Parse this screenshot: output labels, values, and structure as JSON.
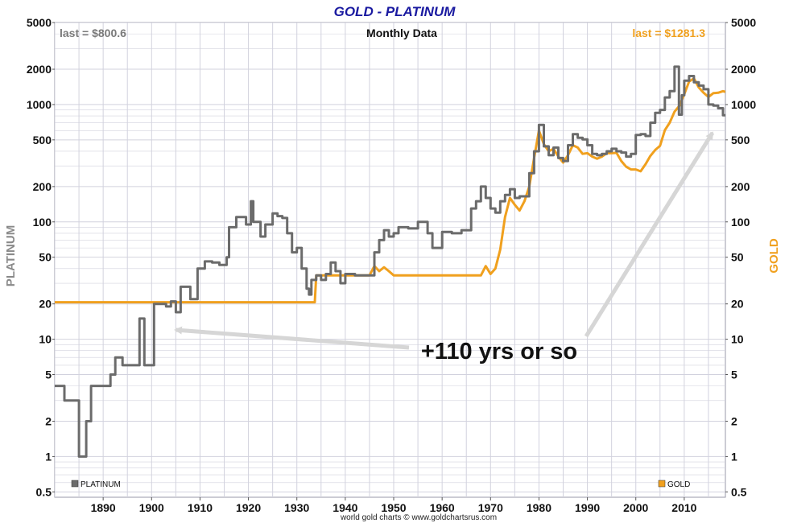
{
  "chart_data": {
    "type": "line",
    "title": "GOLD - PLATINUM",
    "subtitle": "Monthly Data",
    "source": "world gold charts © www.goldchartsrus.com",
    "ylabel_left": "PLATINUM",
    "ylabel_right": "GOLD",
    "y_scale": "log",
    "ylim": [
      0.45,
      5000
    ],
    "xlim": [
      1880,
      2018.5
    ],
    "y_ticks": [
      0.5,
      1,
      2,
      5,
      10,
      20,
      50,
      100,
      200,
      500,
      1000,
      2000,
      5000
    ],
    "y_tick_labels": [
      "0.5",
      "1",
      "2",
      "5",
      "10",
      "20",
      "50",
      "100",
      "200",
      "500",
      "1000",
      "2000",
      "5000"
    ],
    "x_ticks": [
      1890,
      1900,
      1910,
      1920,
      1930,
      1940,
      1950,
      1960,
      1970,
      1980,
      1990,
      2000,
      2010
    ],
    "x_tick_labels": [
      "1890",
      "1900",
      "1910",
      "1920",
      "1930",
      "1940",
      "1950",
      "1960",
      "1970",
      "1980",
      "1990",
      "2000",
      "2010"
    ],
    "grid": true,
    "legend": [
      {
        "name": "PLATINUM",
        "position": "bottom-left"
      },
      {
        "name": "GOLD",
        "position": "bottom-right"
      }
    ],
    "last_labels": {
      "platinum": "last = $800.6",
      "gold": "last = $1281.3"
    },
    "annotation": "+110 yrs or so",
    "colors": {
      "platinum": "#6b6b6b",
      "gold": "#f0a01e",
      "title": "#1a1aa0",
      "arrow": "#d6d6d6",
      "grid": "#d2d2de"
    },
    "series": [
      {
        "name": "PLATINUM",
        "step": true,
        "points": [
          [
            1880,
            4
          ],
          [
            1882,
            3
          ],
          [
            1885,
            1
          ],
          [
            1886.5,
            2
          ],
          [
            1887.5,
            4
          ],
          [
            1891.5,
            5
          ],
          [
            1892.5,
            7
          ],
          [
            1894,
            6
          ],
          [
            1897.5,
            15
          ],
          [
            1898.5,
            6
          ],
          [
            1900.5,
            20
          ],
          [
            1903,
            19
          ],
          [
            1904,
            21
          ],
          [
            1905,
            17
          ],
          [
            1906,
            28
          ],
          [
            1908,
            22
          ],
          [
            1909.5,
            40
          ],
          [
            1911,
            46
          ],
          [
            1912.5,
            45
          ],
          [
            1914,
            43
          ],
          [
            1915.5,
            50
          ],
          [
            1916,
            90
          ],
          [
            1917.5,
            110
          ],
          [
            1919.5,
            95
          ],
          [
            1920.5,
            150
          ],
          [
            1921,
            100
          ],
          [
            1922.5,
            75
          ],
          [
            1923.5,
            95
          ],
          [
            1925,
            118
          ],
          [
            1926,
            112
          ],
          [
            1927,
            108
          ],
          [
            1928,
            80
          ],
          [
            1929,
            55
          ],
          [
            1930,
            60
          ],
          [
            1931,
            40
          ],
          [
            1932,
            27
          ],
          [
            1932.5,
            24
          ],
          [
            1933,
            32
          ],
          [
            1934,
            35
          ],
          [
            1935,
            32
          ],
          [
            1936,
            36
          ],
          [
            1937,
            45
          ],
          [
            1938,
            38
          ],
          [
            1939,
            30
          ],
          [
            1940,
            36
          ],
          [
            1942,
            35
          ],
          [
            1945,
            35
          ],
          [
            1946,
            55
          ],
          [
            1947,
            70
          ],
          [
            1948,
            85
          ],
          [
            1949,
            75
          ],
          [
            1950,
            80
          ],
          [
            1951,
            90
          ],
          [
            1953,
            88
          ],
          [
            1955,
            100
          ],
          [
            1957,
            80
          ],
          [
            1958,
            60
          ],
          [
            1960,
            82
          ],
          [
            1962,
            80
          ],
          [
            1964,
            85
          ],
          [
            1966,
            130
          ],
          [
            1967,
            150
          ],
          [
            1968,
            200
          ],
          [
            1969,
            160
          ],
          [
            1970,
            130
          ],
          [
            1971,
            120
          ],
          [
            1972,
            150
          ],
          [
            1973,
            170
          ],
          [
            1974,
            190
          ],
          [
            1975,
            160
          ],
          [
            1976,
            165
          ],
          [
            1977,
            165
          ],
          [
            1978,
            260
          ],
          [
            1979,
            400
          ],
          [
            1980,
            670
          ],
          [
            1981,
            440
          ],
          [
            1982,
            370
          ],
          [
            1983,
            430
          ],
          [
            1984,
            350
          ],
          [
            1985,
            330
          ],
          [
            1986,
            450
          ],
          [
            1987,
            560
          ],
          [
            1988,
            520
          ],
          [
            1989,
            505
          ],
          [
            1990,
            450
          ],
          [
            1991,
            380
          ],
          [
            1992,
            370
          ],
          [
            1993,
            380
          ],
          [
            1994,
            400
          ],
          [
            1995,
            420
          ],
          [
            1996,
            400
          ],
          [
            1997,
            390
          ],
          [
            1998,
            360
          ],
          [
            1999,
            380
          ],
          [
            2000,
            550
          ],
          [
            2001,
            560
          ],
          [
            2002,
            540
          ],
          [
            2003,
            700
          ],
          [
            2004,
            850
          ],
          [
            2005,
            900
          ],
          [
            2006,
            1150
          ],
          [
            2007,
            1300
          ],
          [
            2008,
            2100
          ],
          [
            2008.9,
            820
          ],
          [
            2009.5,
            1200
          ],
          [
            2010,
            1600
          ],
          [
            2011,
            1750
          ],
          [
            2012,
            1550
          ],
          [
            2013,
            1450
          ],
          [
            2014,
            1350
          ],
          [
            2015,
            1000
          ],
          [
            2016,
            980
          ],
          [
            2017,
            930
          ],
          [
            2018,
            810
          ],
          [
            2018.5,
            800.6
          ]
        ]
      },
      {
        "name": "GOLD",
        "step": false,
        "points": [
          [
            1880,
            20.67
          ],
          [
            1933.7,
            20.67
          ],
          [
            1934,
            35
          ],
          [
            1945,
            35
          ],
          [
            1946,
            42
          ],
          [
            1947,
            38
          ],
          [
            1948,
            41
          ],
          [
            1949,
            38
          ],
          [
            1950,
            35
          ],
          [
            1968,
            35
          ],
          [
            1969,
            42
          ],
          [
            1970,
            36
          ],
          [
            1971,
            40
          ],
          [
            1972,
            58
          ],
          [
            1973,
            110
          ],
          [
            1974,
            160
          ],
          [
            1975,
            140
          ],
          [
            1976,
            125
          ],
          [
            1977,
            150
          ],
          [
            1978,
            200
          ],
          [
            1979,
            350
          ],
          [
            1980,
            600
          ],
          [
            1981,
            460
          ],
          [
            1982,
            400
          ],
          [
            1983,
            420
          ],
          [
            1984,
            360
          ],
          [
            1985,
            320
          ],
          [
            1986,
            370
          ],
          [
            1987,
            450
          ],
          [
            1988,
            430
          ],
          [
            1989,
            380
          ],
          [
            1990,
            385
          ],
          [
            1991,
            360
          ],
          [
            1992,
            345
          ],
          [
            1993,
            360
          ],
          [
            1994,
            385
          ],
          [
            1995,
            385
          ],
          [
            1996,
            388
          ],
          [
            1997,
            330
          ],
          [
            1998,
            295
          ],
          [
            1999,
            280
          ],
          [
            2000,
            280
          ],
          [
            2001,
            270
          ],
          [
            2002,
            310
          ],
          [
            2003,
            365
          ],
          [
            2004,
            410
          ],
          [
            2005,
            445
          ],
          [
            2006,
            605
          ],
          [
            2007,
            700
          ],
          [
            2008,
            870
          ],
          [
            2009,
            975
          ],
          [
            2010,
            1225
          ],
          [
            2011,
            1570
          ],
          [
            2012,
            1670
          ],
          [
            2013,
            1400
          ],
          [
            2014,
            1260
          ],
          [
            2015,
            1160
          ],
          [
            2016,
            1250
          ],
          [
            2017,
            1260
          ],
          [
            2018,
            1300
          ],
          [
            2018.5,
            1281.3
          ]
        ]
      }
    ]
  }
}
